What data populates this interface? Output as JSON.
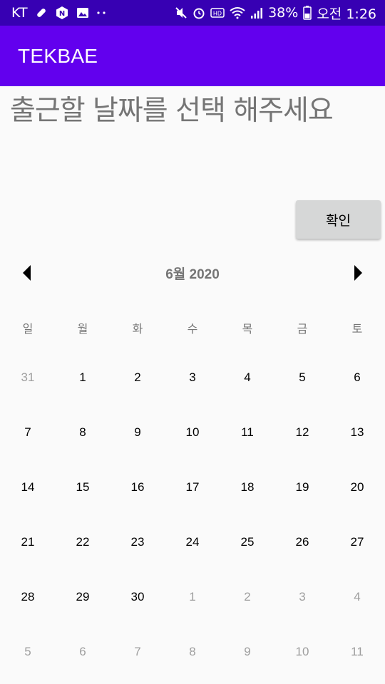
{
  "status_bar": {
    "carrier": "KT",
    "battery": "38%",
    "time": "오전 1:26"
  },
  "app_bar": {
    "title": "TEKBAE"
  },
  "prompt": "출근할 날짜를 선택 해주세요",
  "confirm_label": "확인",
  "calendar": {
    "month_label": "6월 2020",
    "weekdays": [
      "일",
      "월",
      "화",
      "수",
      "목",
      "금",
      "토"
    ],
    "weeks": [
      [
        {
          "d": "31",
          "cur": false
        },
        {
          "d": "1",
          "cur": true
        },
        {
          "d": "2",
          "cur": true
        },
        {
          "d": "3",
          "cur": true
        },
        {
          "d": "4",
          "cur": true
        },
        {
          "d": "5",
          "cur": true
        },
        {
          "d": "6",
          "cur": true
        }
      ],
      [
        {
          "d": "7",
          "cur": true
        },
        {
          "d": "8",
          "cur": true
        },
        {
          "d": "9",
          "cur": true
        },
        {
          "d": "10",
          "cur": true
        },
        {
          "d": "11",
          "cur": true
        },
        {
          "d": "12",
          "cur": true
        },
        {
          "d": "13",
          "cur": true
        }
      ],
      [
        {
          "d": "14",
          "cur": true
        },
        {
          "d": "15",
          "cur": true
        },
        {
          "d": "16",
          "cur": true
        },
        {
          "d": "17",
          "cur": true
        },
        {
          "d": "18",
          "cur": true
        },
        {
          "d": "19",
          "cur": true
        },
        {
          "d": "20",
          "cur": true
        }
      ],
      [
        {
          "d": "21",
          "cur": true
        },
        {
          "d": "22",
          "cur": true
        },
        {
          "d": "23",
          "cur": true
        },
        {
          "d": "24",
          "cur": true
        },
        {
          "d": "25",
          "cur": true
        },
        {
          "d": "26",
          "cur": true
        },
        {
          "d": "27",
          "cur": true
        }
      ],
      [
        {
          "d": "28",
          "cur": true
        },
        {
          "d": "29",
          "cur": true
        },
        {
          "d": "30",
          "cur": true
        },
        {
          "d": "1",
          "cur": false
        },
        {
          "d": "2",
          "cur": false
        },
        {
          "d": "3",
          "cur": false
        },
        {
          "d": "4",
          "cur": false
        }
      ],
      [
        {
          "d": "5",
          "cur": false
        },
        {
          "d": "6",
          "cur": false
        },
        {
          "d": "7",
          "cur": false
        },
        {
          "d": "8",
          "cur": false
        },
        {
          "d": "9",
          "cur": false
        },
        {
          "d": "10",
          "cur": false
        },
        {
          "d": "11",
          "cur": false
        }
      ]
    ]
  },
  "colors": {
    "status_bar": "#3700b3",
    "app_bar": "#6200ee",
    "prompt_text": "#757575",
    "other_month_day": "#9e9e9e"
  }
}
